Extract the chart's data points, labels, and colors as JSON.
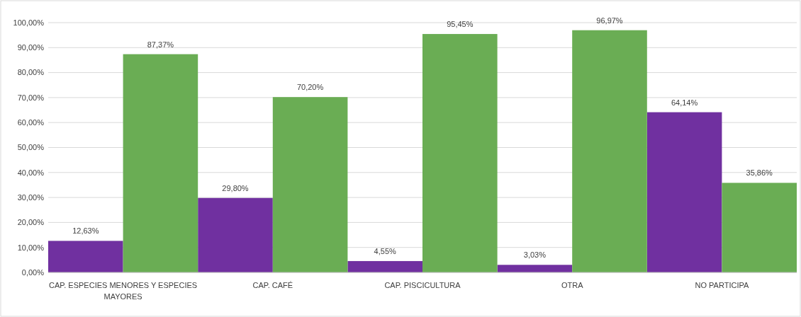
{
  "chart_data": {
    "type": "bar",
    "categories": [
      "CAP. ESPECIES MENORES Y ESPECIES MAYORES",
      "CAP. CAFÉ",
      "CAP. PISCICULTURA",
      "OTRA",
      "NO PARTICIPA"
    ],
    "series": [
      {
        "color": "#7030a0",
        "values": [
          12.63,
          29.8,
          4.55,
          3.03,
          64.14
        ],
        "value_labels": [
          "12,63%",
          "29,80%",
          "4,55%",
          "3,03%",
          "64,14%"
        ]
      },
      {
        "color": "#6aad54",
        "values": [
          87.37,
          70.2,
          95.45,
          96.97,
          35.86
        ],
        "value_labels": [
          "87,37%",
          "70,20%",
          "95,45%",
          "96,97%",
          "35,86%"
        ]
      }
    ],
    "ylim": [
      0,
      100
    ],
    "yticks": [
      {
        "value": 0,
        "label": "0,00%"
      },
      {
        "value": 10,
        "label": "10,00%"
      },
      {
        "value": 20,
        "label": "20,00%"
      },
      {
        "value": 30,
        "label": "30,00%"
      },
      {
        "value": 40,
        "label": "40,00%"
      },
      {
        "value": 50,
        "label": "50,00%"
      },
      {
        "value": 60,
        "label": "60,00%"
      },
      {
        "value": 70,
        "label": "70,00%"
      },
      {
        "value": 80,
        "label": "80,00%"
      },
      {
        "value": 90,
        "label": "90,00%"
      },
      {
        "value": 100,
        "label": "100,00%"
      }
    ],
    "grid": "y"
  }
}
